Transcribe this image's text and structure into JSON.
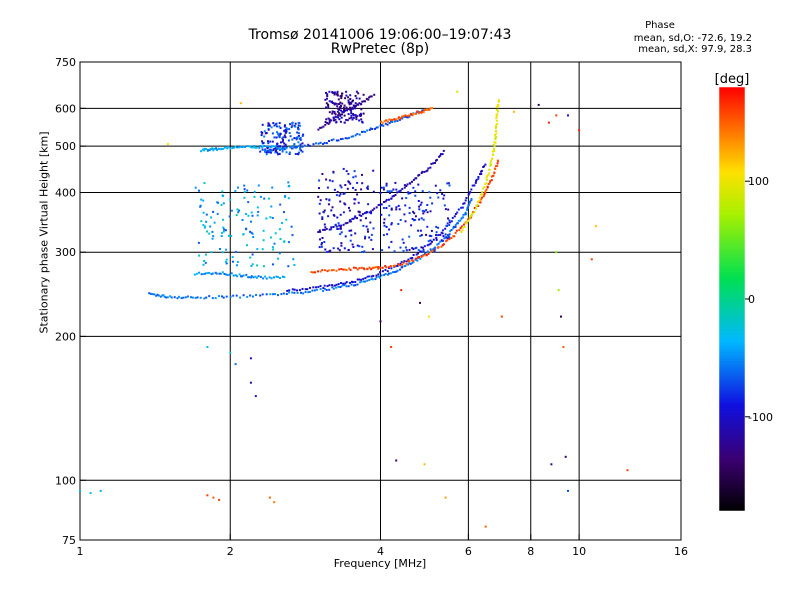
{
  "chart_data": {
    "type": "scatter",
    "title": "Tromsø 20141006 19:06:00–19:07:43",
    "subtitle": "RwPretec (8p)",
    "xlabel": "Frequency [MHz]",
    "ylabel": "Stationary phase Virtual Height [km]",
    "x_scale": "log",
    "y_scale": "log",
    "xlim": [
      1,
      16
    ],
    "ylim": [
      75,
      750
    ],
    "x_ticks": [
      1,
      2,
      4,
      6,
      8,
      10,
      16
    ],
    "x_tick_labels": [
      "1",
      "2",
      "4",
      "6",
      "8",
      "10",
      "16"
    ],
    "y_ticks": [
      75,
      100,
      200,
      300,
      400,
      500,
      600,
      750
    ],
    "y_tick_labels": [
      "75",
      "100",
      "200",
      "300",
      "400",
      "500",
      "600",
      "750"
    ],
    "grid_x": [
      2,
      4,
      6,
      8,
      10
    ],
    "grid_y": [
      100,
      200,
      300,
      400,
      500,
      600
    ],
    "phase_stats": {
      "title": "Phase",
      "o_line": "mean, sd,O: -72.6, 19.2",
      "x_line": "mean, sd,X: 97.9, 28.3"
    },
    "colorbar": {
      "label": "[deg]",
      "range": [
        -180,
        180
      ],
      "ticks": [
        100,
        0,
        -100
      ],
      "tick_labels": [
        "100",
        "0",
        "-100"
      ]
    },
    "traces": [
      {
        "name": "",
        "phase": -60,
        "points": [
          [
            1.38,
            245
          ],
          [
            1.5,
            242
          ],
          [
            1.7,
            241
          ],
          [
            2.0,
            242
          ],
          [
            2.4,
            244
          ],
          [
            2.8,
            247
          ],
          [
            3.2,
            252
          ],
          [
            3.6,
            258
          ],
          [
            4.0,
            266
          ],
          [
            4.4,
            278
          ],
          [
            4.8,
            292
          ],
          [
            5.2,
            310
          ],
          [
            5.6,
            335
          ],
          [
            5.9,
            360
          ],
          [
            6.1,
            390
          ]
        ]
      },
      {
        "name": "",
        "phase": -95,
        "points": [
          [
            2.6,
            250
          ],
          [
            3.0,
            253
          ],
          [
            3.4,
            258
          ],
          [
            3.8,
            266
          ],
          [
            4.3,
            280
          ],
          [
            4.8,
            300
          ],
          [
            5.3,
            330
          ],
          [
            5.8,
            370
          ],
          [
            6.2,
            420
          ],
          [
            6.5,
            460
          ]
        ]
      },
      {
        "name": "",
        "phase": 160,
        "points": [
          [
            2.9,
            272
          ],
          [
            3.3,
            276
          ],
          [
            3.7,
            278
          ],
          [
            4.0,
            278
          ],
          [
            4.5,
            285
          ],
          [
            5.0,
            298
          ],
          [
            5.5,
            318
          ],
          [
            6.0,
            350
          ],
          [
            6.4,
            390
          ],
          [
            6.7,
            430
          ],
          [
            6.9,
            470
          ]
        ]
      },
      {
        "name": "",
        "phase": 95,
        "points": [
          [
            5.8,
            330
          ],
          [
            6.2,
            370
          ],
          [
            6.5,
            420
          ],
          [
            6.7,
            470
          ],
          [
            6.8,
            520
          ],
          [
            6.85,
            580
          ],
          [
            6.9,
            630
          ]
        ]
      },
      {
        "name": "",
        "phase": -70,
        "points": [
          [
            2.3,
            490
          ],
          [
            2.6,
            495
          ],
          [
            3.0,
            505
          ],
          [
            3.4,
            520
          ],
          [
            3.8,
            540
          ],
          [
            4.2,
            560
          ],
          [
            4.6,
            580
          ],
          [
            5.0,
            600
          ]
        ]
      },
      {
        "name": "",
        "phase": 150,
        "points": [
          [
            4.0,
            560
          ],
          [
            4.4,
            575
          ],
          [
            4.8,
            590
          ],
          [
            5.1,
            600
          ]
        ]
      },
      {
        "name": "",
        "phase": -40,
        "points": [
          [
            1.75,
            490
          ],
          [
            1.85,
            493
          ],
          [
            2.0,
            496
          ],
          [
            2.2,
            498
          ],
          [
            2.4,
            498
          ],
          [
            2.6,
            495
          ]
        ]
      },
      {
        "name": "",
        "phase": -50,
        "points": [
          [
            1.7,
            270
          ],
          [
            1.9,
            272
          ],
          [
            2.1,
            268
          ],
          [
            2.3,
            266
          ],
          [
            2.6,
            265
          ]
        ]
      },
      {
        "name": "",
        "phase": -110,
        "points": [
          [
            3.0,
            330
          ],
          [
            3.4,
            345
          ],
          [
            3.8,
            365
          ],
          [
            4.2,
            390
          ],
          [
            4.6,
            420
          ],
          [
            5.0,
            450
          ],
          [
            5.4,
            490
          ]
        ]
      },
      {
        "name": "",
        "phase": -130,
        "points": [
          [
            3.0,
            540
          ],
          [
            3.3,
            580
          ],
          [
            3.6,
            610
          ],
          [
            3.9,
            640
          ]
        ]
      }
    ],
    "clusters": [
      {
        "name": "",
        "phase": -40,
        "x_range": [
          1.7,
          2.7
        ],
        "y_range": [
          280,
          420
        ]
      },
      {
        "name": "",
        "phase": -100,
        "x_range": [
          3.0,
          3.9
        ],
        "y_range": [
          300,
          450
        ]
      },
      {
        "name": "",
        "phase": -80,
        "x_range": [
          2.3,
          2.8
        ],
        "y_range": [
          480,
          560
        ]
      },
      {
        "name": "",
        "phase": -120,
        "x_range": [
          3.1,
          3.7
        ],
        "y_range": [
          560,
          650
        ]
      },
      {
        "name": "",
        "phase": -90,
        "x_range": [
          4.0,
          5.5
        ],
        "y_range": [
          300,
          420
        ]
      }
    ],
    "scattered": [
      {
        "x": 1.0,
        "y": 95,
        "phase": -30
      },
      {
        "x": 1.05,
        "y": 94,
        "phase": -30
      },
      {
        "x": 1.1,
        "y": 95,
        "phase": -40
      },
      {
        "x": 1.8,
        "y": 93,
        "phase": 160
      },
      {
        "x": 1.85,
        "y": 92,
        "phase": 150
      },
      {
        "x": 1.9,
        "y": 91,
        "phase": 160
      },
      {
        "x": 2.4,
        "y": 92,
        "phase": 150
      },
      {
        "x": 2.45,
        "y": 90,
        "phase": 140
      },
      {
        "x": 1.8,
        "y": 190,
        "phase": -30
      },
      {
        "x": 2.0,
        "y": 185,
        "phase": -20
      },
      {
        "x": 2.05,
        "y": 175,
        "phase": -60
      },
      {
        "x": 2.2,
        "y": 180,
        "phase": -110
      },
      {
        "x": 2.2,
        "y": 160,
        "phase": -120
      },
      {
        "x": 2.25,
        "y": 150,
        "phase": -90
      },
      {
        "x": 4.0,
        "y": 215,
        "phase": -130
      },
      {
        "x": 4.2,
        "y": 190,
        "phase": 160
      },
      {
        "x": 4.3,
        "y": 110,
        "phase": -130
      },
      {
        "x": 4.4,
        "y": 250,
        "phase": 170
      },
      {
        "x": 4.8,
        "y": 235,
        "phase": -140
      },
      {
        "x": 4.9,
        "y": 108,
        "phase": 120
      },
      {
        "x": 5.0,
        "y": 220,
        "phase": 110
      },
      {
        "x": 5.4,
        "y": 92,
        "phase": 130
      },
      {
        "x": 6.5,
        "y": 80,
        "phase": 150
      },
      {
        "x": 7.0,
        "y": 220,
        "phase": 160
      },
      {
        "x": 8.8,
        "y": 108,
        "phase": -120
      },
      {
        "x": 9.0,
        "y": 300,
        "phase": 60
      },
      {
        "x": 9.1,
        "y": 250,
        "phase": 70
      },
      {
        "x": 9.2,
        "y": 220,
        "phase": -150
      },
      {
        "x": 9.3,
        "y": 190,
        "phase": 150
      },
      {
        "x": 9.4,
        "y": 112,
        "phase": -140
      },
      {
        "x": 9.5,
        "y": 95,
        "phase": -70
      },
      {
        "x": 10.6,
        "y": 290,
        "phase": 160
      },
      {
        "x": 10.8,
        "y": 340,
        "phase": 120
      },
      {
        "x": 12.5,
        "y": 105,
        "phase": 160
      },
      {
        "x": 8.3,
        "y": 610,
        "phase": -150
      },
      {
        "x": 8.7,
        "y": 560,
        "phase": 170
      },
      {
        "x": 9.0,
        "y": 580,
        "phase": 160
      },
      {
        "x": 9.5,
        "y": 580,
        "phase": -90
      },
      {
        "x": 10.0,
        "y": 540,
        "phase": 170
      },
      {
        "x": 7.4,
        "y": 590,
        "phase": 120
      },
      {
        "x": 5.7,
        "y": 650,
        "phase": 90
      },
      {
        "x": 1.5,
        "y": 505,
        "phase": 100
      },
      {
        "x": 2.1,
        "y": 615,
        "phase": 120
      }
    ]
  }
}
